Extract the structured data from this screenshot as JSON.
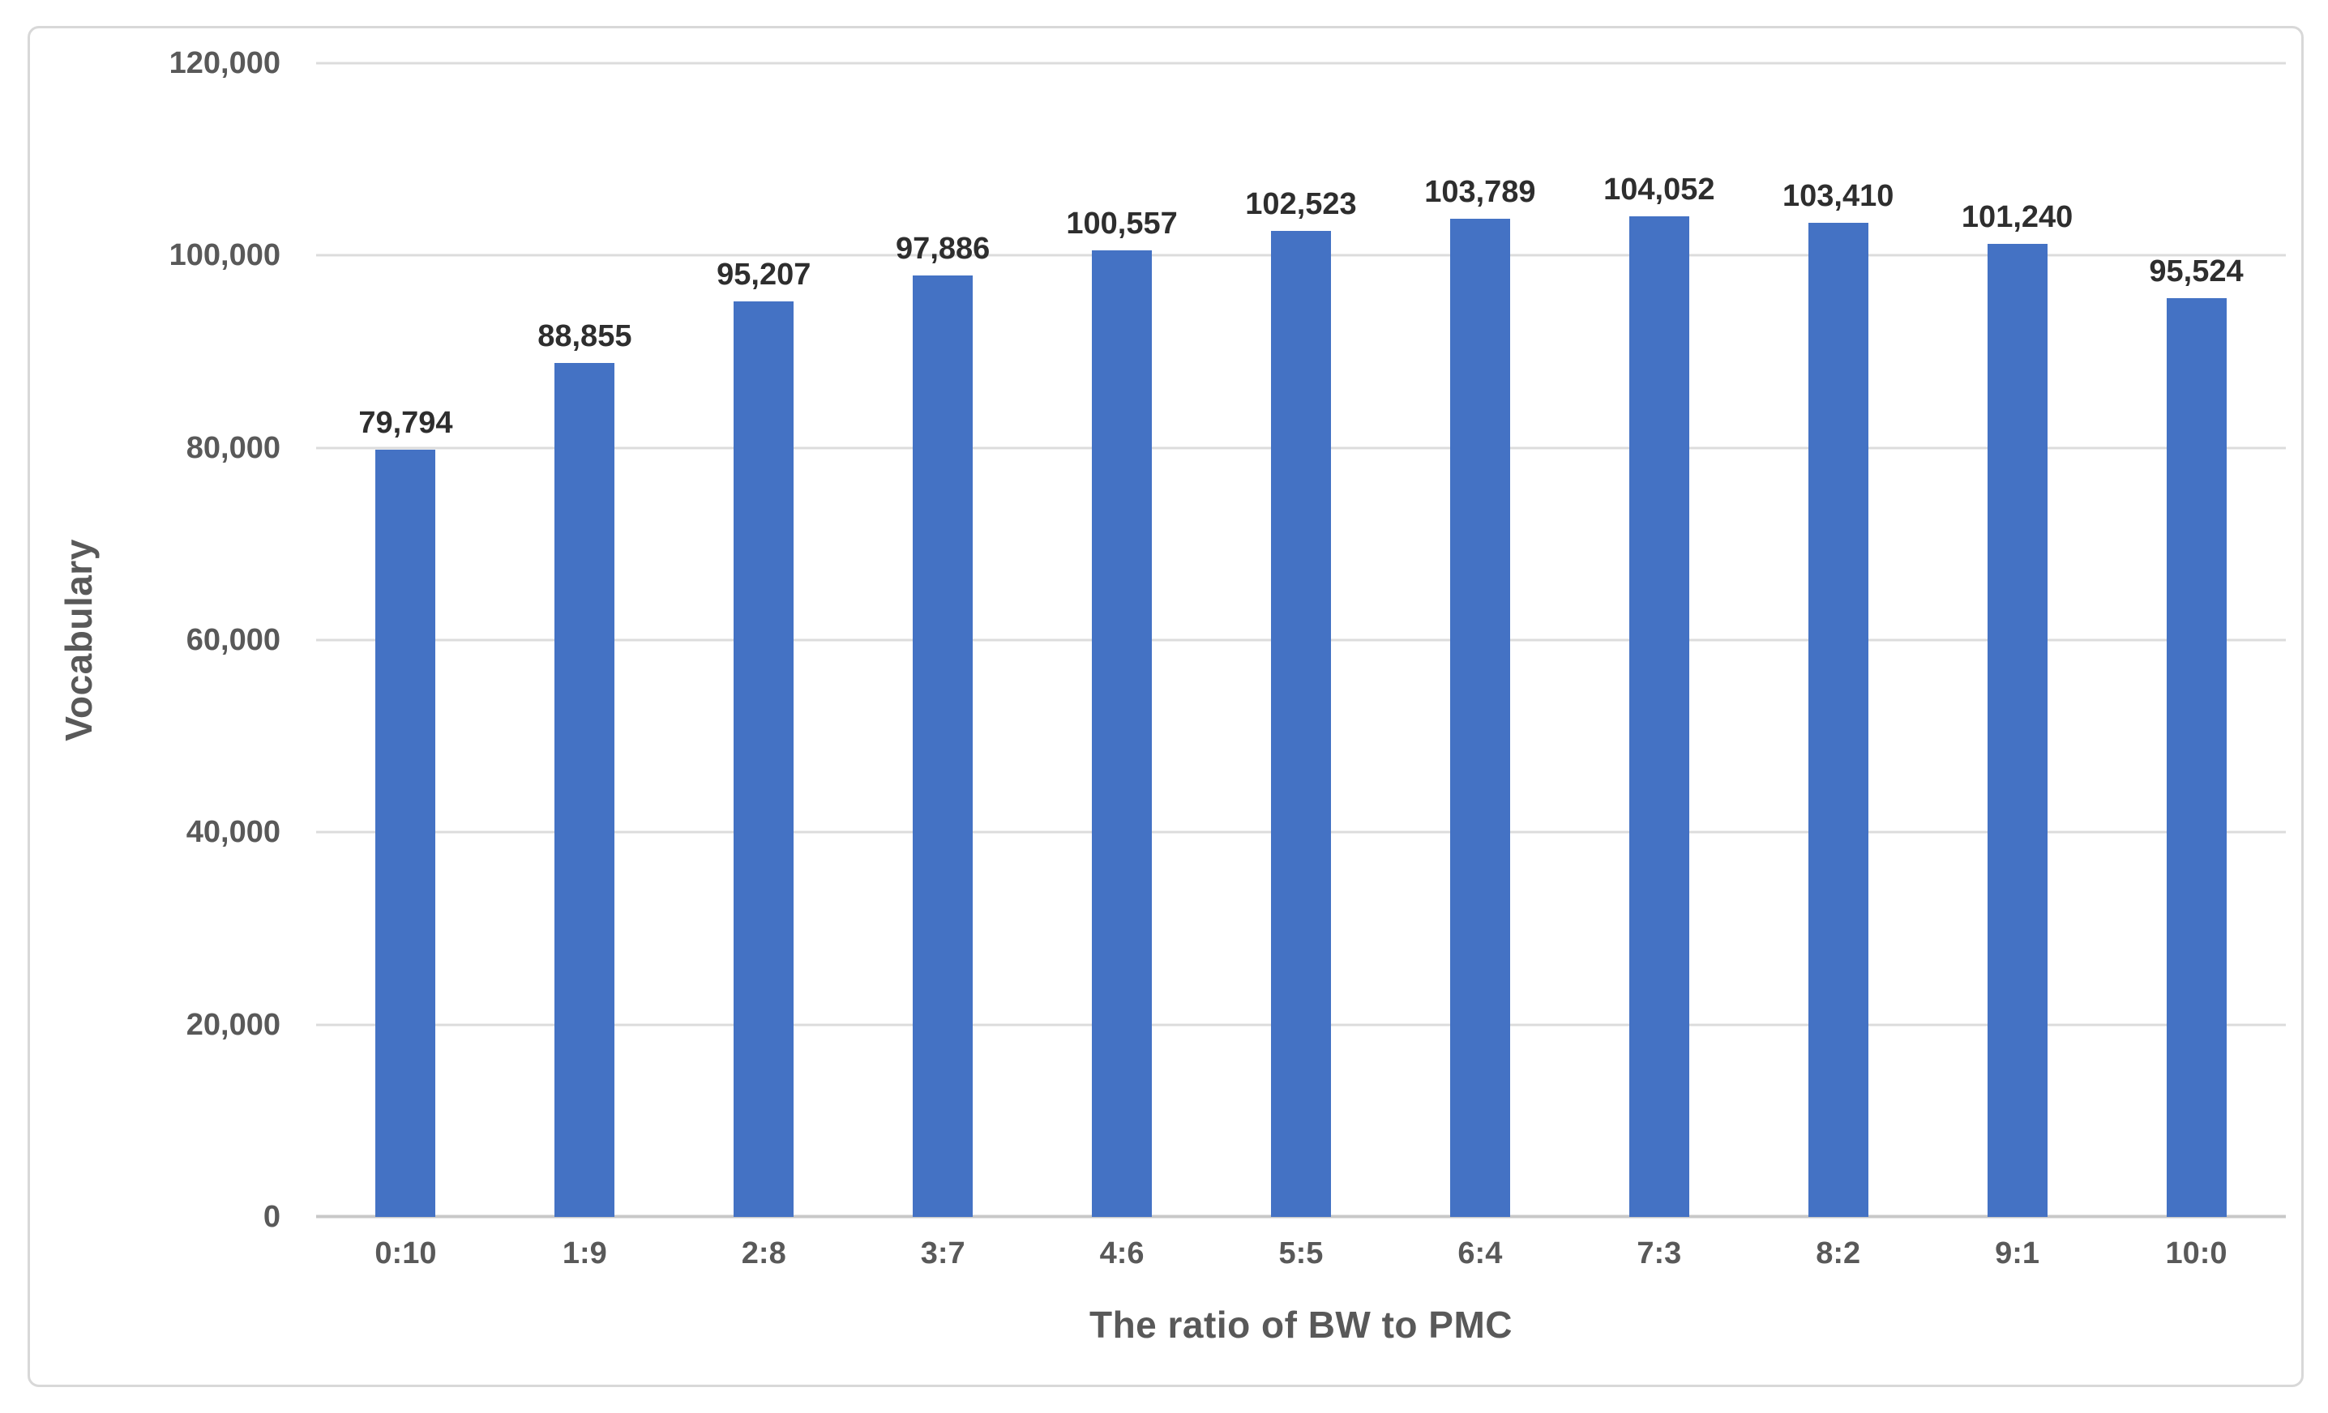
{
  "chart_data": {
    "type": "bar",
    "categories": [
      "0:10",
      "1:9",
      "2:8",
      "3:7",
      "4:6",
      "5:5",
      "6:4",
      "7:3",
      "8:2",
      "9:1",
      "10:0"
    ],
    "values": [
      79794,
      88855,
      95207,
      97886,
      100557,
      102523,
      103789,
      104052,
      103410,
      101240,
      95524
    ],
    "data_labels": [
      "79,794",
      "88,855",
      "95,207",
      "97,886",
      "100,557",
      "102,523",
      "103,789",
      "104,052",
      "103,410",
      "101,240",
      "95,524"
    ],
    "xlabel": "The ratio of BW to PMC",
    "ylabel": "Vocabulary",
    "ylim": [
      0,
      120000
    ],
    "ytick_step": 20000,
    "yticks": [
      "0",
      "20,000",
      "40,000",
      "60,000",
      "80,000",
      "100,000",
      "120,000"
    ],
    "grid": true,
    "legend_position": "none",
    "bar_color": "#4472C4",
    "gridline_color": "#dcdcdc"
  }
}
